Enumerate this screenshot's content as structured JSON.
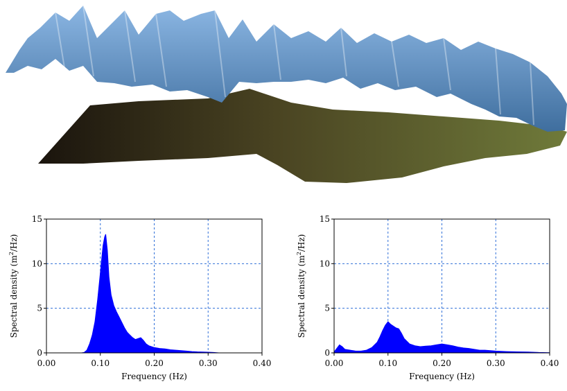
{
  "scene": {
    "wave_surface_color": "#6b9bcf",
    "seabed_color_start": "#1a140d",
    "seabed_color_end": "#6f7a3a"
  },
  "chart_data": [
    {
      "type": "area",
      "xlabel": "Frequency (Hz)",
      "ylabel_main": "Spectral density (m",
      "ylabel_sup": "2",
      "ylabel_tail": "/Hz)",
      "xlim": [
        0,
        0.4
      ],
      "ylim": [
        0,
        15
      ],
      "xticks": [
        "0.00",
        "0.10",
        "0.20",
        "0.30",
        "0.40"
      ],
      "yticks": [
        "0",
        "5",
        "10",
        "15"
      ],
      "grid": true,
      "fill_color": "#0000ff",
      "series": [
        {
          "x": [
            0.065,
            0.07,
            0.075,
            0.08,
            0.085,
            0.09,
            0.095,
            0.1,
            0.105,
            0.108,
            0.11,
            0.113,
            0.116,
            0.12,
            0.125,
            0.13,
            0.135,
            0.14,
            0.145,
            0.15,
            0.155,
            0.16,
            0.165,
            0.17,
            0.175,
            0.18,
            0.185,
            0.19,
            0.2,
            0.21,
            0.22,
            0.23,
            0.24,
            0.25,
            0.26,
            0.27,
            0.28,
            0.29,
            0.3,
            0.31,
            0.32
          ],
          "y": [
            0,
            0.05,
            0.3,
            1.0,
            2.0,
            3.5,
            6.0,
            9.0,
            12.0,
            13.0,
            13.3,
            11.5,
            8.5,
            6.5,
            5.3,
            4.6,
            4.0,
            3.4,
            2.8,
            2.3,
            2.0,
            1.7,
            1.5,
            1.6,
            1.7,
            1.4,
            1.0,
            0.8,
            0.6,
            0.5,
            0.45,
            0.35,
            0.3,
            0.25,
            0.2,
            0.15,
            0.12,
            0.1,
            0.08,
            0.05,
            0
          ]
        }
      ]
    },
    {
      "type": "area",
      "xlabel": "Frequency (Hz)",
      "ylabel_main": "Spectral density (m",
      "ylabel_sup": "2",
      "ylabel_tail": "/Hz)",
      "xlim": [
        0,
        0.4
      ],
      "ylim": [
        0,
        15
      ],
      "xticks": [
        "0.00",
        "0.10",
        "0.20",
        "0.30",
        "0.40"
      ],
      "yticks": [
        "0",
        "5",
        "10",
        "15"
      ],
      "grid": true,
      "fill_color": "#0000ff",
      "series": [
        {
          "x": [
            0.0,
            0.005,
            0.01,
            0.015,
            0.02,
            0.03,
            0.04,
            0.05,
            0.06,
            0.07,
            0.08,
            0.085,
            0.09,
            0.095,
            0.1,
            0.105,
            0.11,
            0.115,
            0.12,
            0.125,
            0.13,
            0.14,
            0.15,
            0.16,
            0.17,
            0.18,
            0.19,
            0.2,
            0.21,
            0.22,
            0.23,
            0.24,
            0.25,
            0.26,
            0.27,
            0.28,
            0.29,
            0.3,
            0.32,
            0.34,
            0.36,
            0.38,
            0.4
          ],
          "y": [
            0.1,
            0.5,
            0.9,
            0.7,
            0.4,
            0.3,
            0.2,
            0.2,
            0.3,
            0.6,
            1.2,
            1.8,
            2.5,
            3.1,
            3.5,
            3.2,
            3.0,
            2.8,
            2.7,
            2.2,
            1.6,
            1.0,
            0.8,
            0.7,
            0.75,
            0.8,
            0.9,
            1.0,
            0.9,
            0.8,
            0.65,
            0.55,
            0.5,
            0.4,
            0.3,
            0.3,
            0.25,
            0.2,
            0.15,
            0.12,
            0.1,
            0.05,
            0.02
          ]
        }
      ]
    }
  ]
}
